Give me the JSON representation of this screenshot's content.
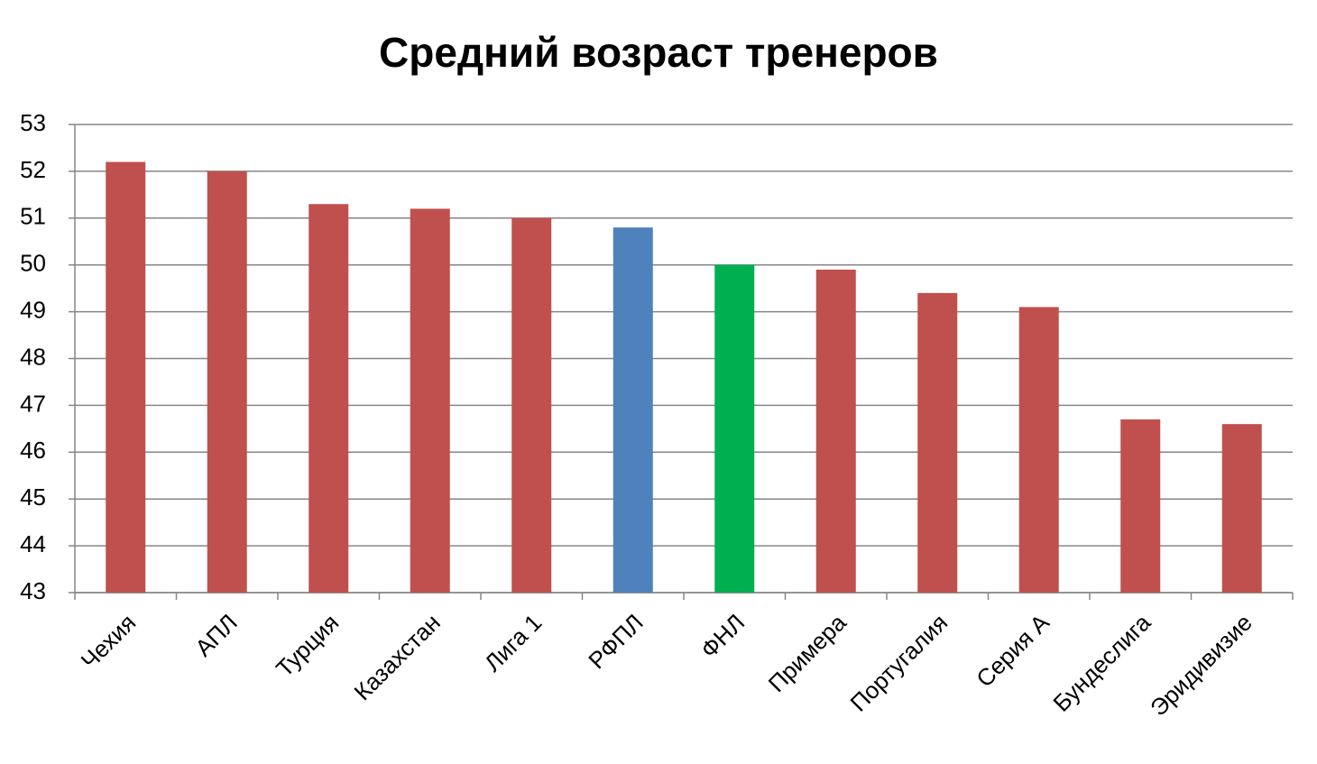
{
  "chart_data": {
    "type": "bar",
    "title": "Средний возраст тренеров",
    "categories": [
      "Чехия",
      "АПЛ",
      "Турция",
      "Казахстан",
      "Лига 1",
      "РФПЛ",
      "ФНЛ",
      "Примера",
      "Португалия",
      "Серия А",
      "Бундеслига",
      "Эридивизие"
    ],
    "values": [
      52.2,
      52.0,
      51.3,
      51.2,
      51.0,
      50.8,
      50.0,
      49.9,
      49.4,
      49.1,
      46.7,
      46.6
    ],
    "colors": [
      "#c0504d",
      "#c0504d",
      "#c0504d",
      "#c0504d",
      "#c0504d",
      "#4f81bd",
      "#00b050",
      "#c0504d",
      "#c0504d",
      "#c0504d",
      "#c0504d",
      "#c0504d"
    ],
    "ylim": [
      43,
      53
    ],
    "yticks": [
      43,
      44,
      45,
      46,
      47,
      48,
      49,
      50,
      51,
      52,
      53
    ],
    "grid": true
  }
}
